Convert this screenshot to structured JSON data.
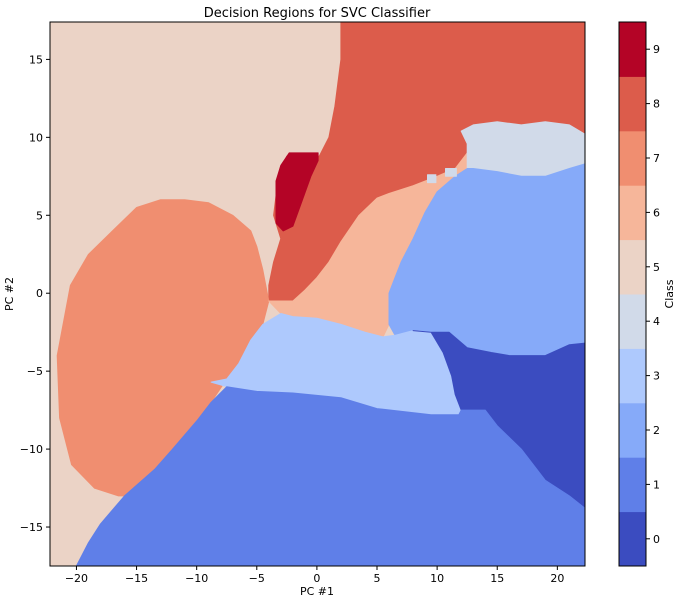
{
  "chart_data": {
    "type": "heatmap",
    "title": "Decision Regions for SVC Classifier",
    "xlabel": "PC #1",
    "ylabel": "PC #2",
    "xlim": [
      -22.2,
      22.3
    ],
    "ylim": [
      -17.5,
      17.4
    ],
    "x_ticks": [
      -20,
      -15,
      -10,
      -5,
      0,
      5,
      10,
      15,
      20
    ],
    "x_tick_labels": [
      "−20",
      "−15",
      "−10",
      "−5",
      "0",
      "5",
      "10",
      "15",
      "20"
    ],
    "y_ticks": [
      -15,
      -10,
      -5,
      0,
      5,
      10,
      15
    ],
    "y_tick_labels": [
      "−15",
      "−10",
      "−5",
      "0",
      "5",
      "10",
      "15"
    ],
    "colorbar": {
      "label": "Class",
      "ticks": [
        0,
        1,
        2,
        3,
        4,
        5,
        6,
        7,
        8,
        9
      ],
      "tick_labels": [
        "0",
        "1",
        "2",
        "3",
        "4",
        "5",
        "6",
        "7",
        "8",
        "9"
      ],
      "colors": [
        "#3b4cc0",
        "#5f7fe8",
        "#86aaf9",
        "#aec9fd",
        "#d1dae9",
        "#ebd3c6",
        "#f6b69a",
        "#f08e70",
        "#dc5c4b",
        "#b40426"
      ]
    },
    "regions": [
      {
        "class": 5,
        "points": [
          [
            -22.2,
            17.4
          ],
          [
            2,
            17.4
          ],
          [
            2,
            15
          ],
          [
            1.5,
            12
          ],
          [
            1,
            10
          ],
          [
            0.2,
            8.8
          ],
          [
            -2.5,
            8.8
          ],
          [
            -3.2,
            7.5
          ],
          [
            -3.6,
            5
          ],
          [
            -3,
            3.5
          ],
          [
            -3.6,
            2
          ],
          [
            -4,
            0.5
          ],
          [
            -4,
            -0.5
          ],
          [
            -4.5,
            1.5
          ],
          [
            -5,
            3
          ],
          [
            -5.5,
            4
          ],
          [
            -7,
            5
          ],
          [
            -9,
            5.8
          ],
          [
            -11,
            6
          ],
          [
            -13,
            6
          ],
          [
            -15,
            5.5
          ],
          [
            -17,
            4
          ],
          [
            -19,
            2.5
          ],
          [
            -20.5,
            0.5
          ],
          [
            -21.6,
            -4
          ],
          [
            -21.4,
            -8
          ],
          [
            -20.4,
            -11
          ],
          [
            -18.5,
            -12.5
          ],
          [
            -16.5,
            -13
          ],
          [
            -16,
            -13
          ],
          [
            -18,
            -14.8
          ],
          [
            -19,
            -16
          ],
          [
            -20,
            -17.5
          ],
          [
            -22.2,
            -17.5
          ]
        ]
      },
      {
        "class": 8,
        "points": [
          [
            2,
            17.4
          ],
          [
            22.3,
            17.4
          ],
          [
            22.3,
            10.2
          ],
          [
            21,
            10.8
          ],
          [
            19,
            11
          ],
          [
            17,
            10.8
          ],
          [
            15,
            11
          ],
          [
            13,
            10.8
          ],
          [
            12,
            10.4
          ],
          [
            12.5,
            9.6
          ],
          [
            12.5,
            9
          ],
          [
            11.5,
            8
          ],
          [
            10,
            7.5
          ],
          [
            8,
            6.9
          ],
          [
            6,
            6.4
          ],
          [
            5,
            6.1
          ],
          [
            3.5,
            5
          ],
          [
            2,
            3.3
          ],
          [
            1,
            2
          ],
          [
            0,
            1
          ],
          [
            -1,
            0.2
          ],
          [
            -2,
            -0.5
          ],
          [
            -4,
            -0.5
          ],
          [
            -4,
            0.5
          ],
          [
            -3.6,
            2
          ],
          [
            -3,
            3.5
          ],
          [
            -3.6,
            5
          ],
          [
            -3.2,
            7.5
          ],
          [
            -2.5,
            8.8
          ],
          [
            0.2,
            8.8
          ],
          [
            1,
            10
          ],
          [
            1.5,
            12
          ],
          [
            2,
            15
          ]
        ]
      },
      {
        "class": 9,
        "points": [
          [
            -2.3,
            9
          ],
          [
            0.1,
            9
          ],
          [
            0.1,
            8.5
          ],
          [
            -0.5,
            7.5
          ],
          [
            -1.2,
            6
          ],
          [
            -2,
            4.3
          ],
          [
            -2.8,
            4
          ],
          [
            -3.4,
            4.5
          ],
          [
            -3.4,
            7.2
          ],
          [
            -3,
            8.2
          ]
        ]
      },
      {
        "class": 7,
        "points": [
          [
            -21.6,
            -4
          ],
          [
            -20.5,
            0.5
          ],
          [
            -19,
            2.5
          ],
          [
            -17,
            4
          ],
          [
            -15,
            5.5
          ],
          [
            -13,
            6
          ],
          [
            -11,
            6
          ],
          [
            -9,
            5.8
          ],
          [
            -7,
            5
          ],
          [
            -5.5,
            4
          ],
          [
            -5,
            3
          ],
          [
            -4.5,
            1.5
          ],
          [
            -4,
            -0.5
          ],
          [
            -4.5,
            -2
          ],
          [
            -5.5,
            -3
          ],
          [
            -6.5,
            -4.5
          ],
          [
            -7.5,
            -5.5
          ],
          [
            -8.8,
            -7
          ],
          [
            -10,
            -8.2
          ],
          [
            -12,
            -10
          ],
          [
            -13.5,
            -11.3
          ],
          [
            -16,
            -13
          ],
          [
            -16.5,
            -13
          ],
          [
            -18.5,
            -12.5
          ],
          [
            -20.4,
            -11
          ],
          [
            -21.4,
            -8
          ]
        ]
      },
      {
        "class": 6,
        "points": [
          [
            -4,
            -0.5
          ],
          [
            -2,
            -0.5
          ],
          [
            -1,
            0.2
          ],
          [
            0,
            1
          ],
          [
            1,
            2
          ],
          [
            2,
            3.3
          ],
          [
            3.5,
            5
          ],
          [
            5,
            6.1
          ],
          [
            6,
            6.4
          ],
          [
            8,
            6.9
          ],
          [
            10,
            7.5
          ],
          [
            11.5,
            8
          ],
          [
            12.5,
            9
          ],
          [
            12.5,
            8
          ],
          [
            11.5,
            7.5
          ],
          [
            10,
            6.5
          ],
          [
            9,
            5.2
          ],
          [
            8,
            3.5
          ],
          [
            7,
            2
          ],
          [
            6.5,
            1
          ],
          [
            6,
            0
          ],
          [
            6,
            -2
          ],
          [
            5.5,
            -2.8
          ],
          [
            4,
            -2.5
          ],
          [
            2,
            -2
          ],
          [
            0,
            -1.6
          ],
          [
            -2,
            -1.5
          ],
          [
            -3,
            -1.3
          ]
        ]
      },
      {
        "class": 4,
        "points": [
          [
            12.5,
            9.6
          ],
          [
            12,
            10.4
          ],
          [
            13,
            10.8
          ],
          [
            15,
            11
          ],
          [
            17,
            10.8
          ],
          [
            19,
            11
          ],
          [
            21,
            10.8
          ],
          [
            22.3,
            10.2
          ],
          [
            22.3,
            8.3
          ],
          [
            21,
            8
          ],
          [
            19,
            7.5
          ],
          [
            17,
            7.5
          ],
          [
            15,
            7.8
          ],
          [
            13,
            8
          ],
          [
            12.5,
            8
          ]
        ]
      },
      {
        "class": 2,
        "points": [
          [
            6,
            -2
          ],
          [
            6,
            0
          ],
          [
            6.5,
            1
          ],
          [
            7,
            2
          ],
          [
            8,
            3.5
          ],
          [
            9,
            5.2
          ],
          [
            10,
            6.5
          ],
          [
            11.5,
            7.5
          ],
          [
            12.5,
            8
          ],
          [
            13,
            8
          ],
          [
            15,
            7.8
          ],
          [
            17,
            7.5
          ],
          [
            19,
            7.5
          ],
          [
            21,
            8
          ],
          [
            22.3,
            8.3
          ],
          [
            22.3,
            -3.2
          ],
          [
            21,
            -3.3
          ],
          [
            19,
            -4
          ],
          [
            16,
            -4
          ],
          [
            14.5,
            -3.8
          ],
          [
            12.5,
            -3.5
          ],
          [
            11,
            -2.5
          ],
          [
            9.5,
            -2.5
          ],
          [
            8,
            -2.4
          ],
          [
            6.5,
            -2.7
          ]
        ]
      },
      {
        "class": 3,
        "points": [
          [
            -3,
            -1.3
          ],
          [
            -2,
            -1.5
          ],
          [
            0,
            -1.6
          ],
          [
            2,
            -2
          ],
          [
            4,
            -2.5
          ],
          [
            5.5,
            -2.8
          ],
          [
            6.5,
            -2.7
          ],
          [
            8,
            -2.4
          ],
          [
            9.5,
            -2.5
          ],
          [
            10.5,
            -3.8
          ],
          [
            11.2,
            -5.3
          ],
          [
            11.5,
            -6.5
          ],
          [
            12,
            -7.5
          ],
          [
            11.8,
            -7.8
          ],
          [
            9.5,
            -7.8
          ],
          [
            5,
            -7.4
          ],
          [
            2,
            -6.7
          ],
          [
            -2,
            -6.4
          ],
          [
            -5,
            -6.3
          ],
          [
            -7.5,
            -6
          ],
          [
            -8.8,
            -5.7
          ],
          [
            -7.5,
            -5.5
          ],
          [
            -6.5,
            -4.5
          ],
          [
            -5.5,
            -3
          ],
          [
            -4.5,
            -2
          ]
        ]
      },
      {
        "class": 0,
        "points": [
          [
            8,
            -2.4
          ],
          [
            9.5,
            -2.5
          ],
          [
            11,
            -2.5
          ],
          [
            12.5,
            -3.5
          ],
          [
            14.5,
            -3.8
          ],
          [
            16,
            -4
          ],
          [
            19,
            -4
          ],
          [
            21,
            -3.3
          ],
          [
            22.3,
            -3.2
          ],
          [
            22.3,
            -13.8
          ],
          [
            21,
            -13
          ],
          [
            19,
            -12
          ],
          [
            17,
            -10
          ],
          [
            15,
            -8.5
          ],
          [
            14,
            -7.5
          ],
          [
            12,
            -7.5
          ],
          [
            11.5,
            -6.5
          ],
          [
            11.2,
            -5.3
          ],
          [
            10.5,
            -3.8
          ],
          [
            9.5,
            -2.5
          ]
        ]
      },
      {
        "class": 1,
        "points": [
          [
            -20,
            -17.5
          ],
          [
            -19,
            -16
          ],
          [
            -18,
            -14.8
          ],
          [
            -16,
            -13
          ],
          [
            -13.5,
            -11.3
          ],
          [
            -12,
            -10
          ],
          [
            -10,
            -8.2
          ],
          [
            -8.8,
            -7
          ],
          [
            -7.5,
            -6
          ],
          [
            -5,
            -6.3
          ],
          [
            -2,
            -6.4
          ],
          [
            2,
            -6.7
          ],
          [
            5,
            -7.4
          ],
          [
            9.5,
            -7.8
          ],
          [
            11.8,
            -7.8
          ],
          [
            12,
            -7.5
          ],
          [
            14,
            -7.5
          ],
          [
            15,
            -8.5
          ],
          [
            17,
            -10
          ],
          [
            19,
            -12
          ],
          [
            21,
            -13
          ],
          [
            22.3,
            -13.8
          ],
          [
            22.3,
            -17.5
          ]
        ]
      },
      {
        "class": 4,
        "points": [
          [
            9.2,
            7.6
          ],
          [
            9.9,
            7.6
          ],
          [
            9.9,
            7.1
          ],
          [
            9.2,
            7.1
          ]
        ]
      },
      {
        "class": 4,
        "points": [
          [
            10.7,
            8
          ],
          [
            11.6,
            8
          ],
          [
            11.6,
            7.5
          ],
          [
            10.7,
            7.5
          ]
        ]
      }
    ]
  }
}
